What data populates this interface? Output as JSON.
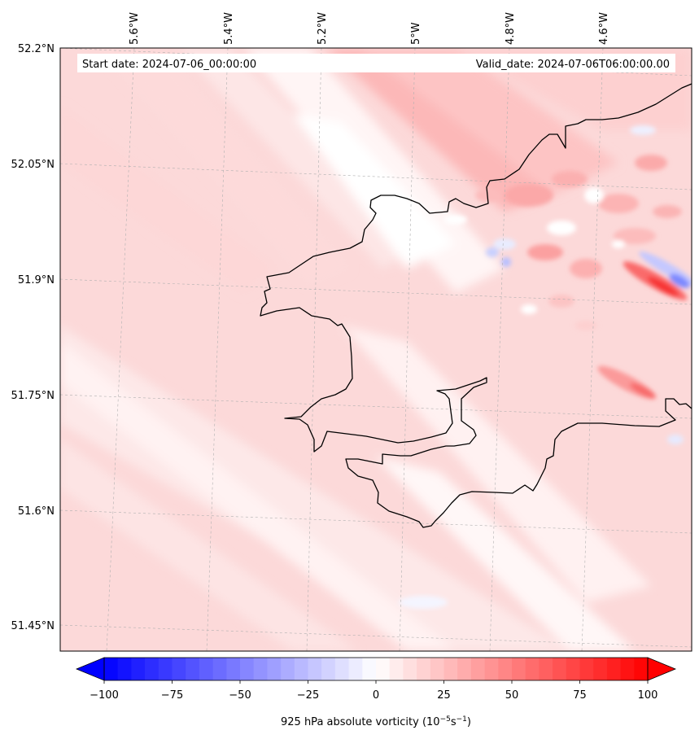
{
  "map": {
    "start_label": "Start date: 2024-07-06_00:00:00",
    "valid_label": "Valid_date: 2024-07-06T06:00:00.00",
    "lon_labels": [
      "5.6°W",
      "5.4°W",
      "5.2°W",
      "5°W",
      "4.8°W",
      "4.6°W"
    ],
    "lat_labels": [
      "52.2°N",
      "52.05°N",
      "51.9°N",
      "51.75°N",
      "51.6°N",
      "51.45°N"
    ],
    "field": "925 hPa absolute vorticity",
    "colormap": "bwr",
    "colors": {
      "negative": "#0000ff",
      "neutral": "#ffffff",
      "positive": "#ff0000",
      "coastline": "#000000",
      "gridline": "#b0b0b0"
    }
  },
  "colorbar": {
    "label_text": "925 hPa absolute vorticity (10",
    "label_exp1": "−5",
    "label_unit": "s",
    "label_exp2": "−1",
    "label_close": ")",
    "ticks": [
      "−100",
      "−75",
      "−50",
      "−25",
      "0",
      "25",
      "50",
      "75",
      "100"
    ],
    "min": -100,
    "max": 100,
    "levels": 41,
    "extend": "both"
  }
}
